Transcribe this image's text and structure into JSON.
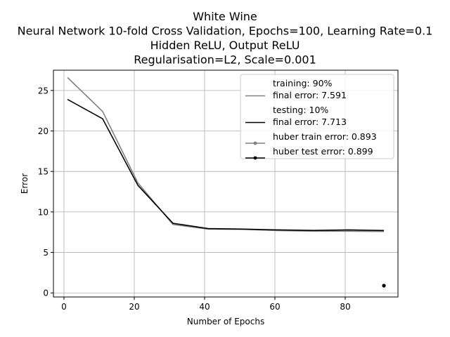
{
  "chart_data": {
    "type": "line",
    "title_lines": [
      "White Wine",
      "Neural Network 10-fold Cross Validation, Epochs=100, Learning Rate=0.1",
      "Hidden ReLU, Output ReLU",
      "Regularisation=L2, Scale=0.001"
    ],
    "xlabel": "Number of Epochs",
    "ylabel": "Error",
    "xlim": [
      -3,
      95
    ],
    "ylim": [
      -0.5,
      27.5
    ],
    "xticks": [
      0,
      20,
      40,
      60,
      80
    ],
    "yticks": [
      0,
      5,
      10,
      15,
      20,
      25
    ],
    "grid": true,
    "legend_position": "top-right",
    "series": [
      {
        "legend": [
          "training: 90%",
          "final error: 7.591"
        ],
        "color": "#808080",
        "marker": "none",
        "x": [
          1,
          11,
          21,
          31,
          41,
          51,
          61,
          71,
          81,
          91
        ],
        "y": [
          26.6,
          22.4,
          13.6,
          8.45,
          7.88,
          7.85,
          7.7,
          7.62,
          7.62,
          7.59
        ]
      },
      {
        "legend": [
          "testing: 10%",
          "final error: 7.713"
        ],
        "color": "#000000",
        "marker": "none",
        "x": [
          1,
          11,
          21,
          31,
          41,
          51,
          61,
          71,
          81,
          91
        ],
        "y": [
          23.9,
          21.5,
          13.3,
          8.6,
          7.95,
          7.88,
          7.78,
          7.72,
          7.78,
          7.71
        ]
      },
      {
        "legend": [
          "huber train error: 0.893"
        ],
        "color": "#808080",
        "marker": "dot",
        "x": [
          91
        ],
        "y": [
          0.893
        ]
      },
      {
        "legend": [
          "huber test error: 0.899"
        ],
        "color": "#000000",
        "marker": "dot",
        "x": [
          91
        ],
        "y": [
          0.899
        ]
      }
    ]
  }
}
